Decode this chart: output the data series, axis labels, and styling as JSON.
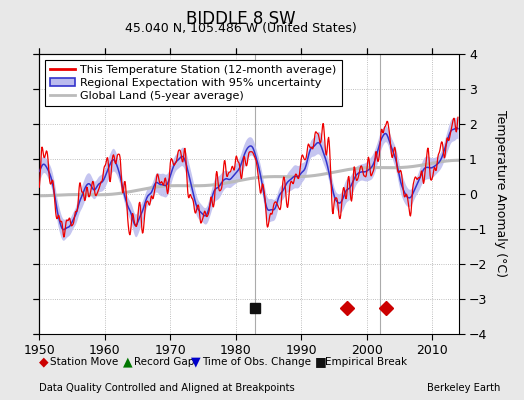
{
  "title": "BIDDLE 8 SW",
  "subtitle": "45.040 N, 105.486 W (United States)",
  "xlabel_bottom": "Data Quality Controlled and Aligned at Breakpoints",
  "xlabel_right": "Berkeley Earth",
  "ylabel": "Temperature Anomaly (°C)",
  "legend_entries": [
    "This Temperature Station (12-month average)",
    "Regional Expectation with 95% uncertainty",
    "Global Land (5-year average)"
  ],
  "ylim": [
    -4,
    4
  ],
  "xlim": [
    1950,
    2014
  ],
  "yticks": [
    -4,
    -3,
    -2,
    -1,
    0,
    1,
    2,
    3,
    4
  ],
  "xticks": [
    1950,
    1960,
    1970,
    1980,
    1990,
    2000,
    2010
  ],
  "station_color": "#EE0000",
  "regional_color": "#3333CC",
  "regional_fill_color": "#BBBBEE",
  "global_color": "#BBBBBB",
  "background_color": "#E8E8E8",
  "plot_bg_color": "#FFFFFF",
  "vline_years": [
    1983,
    2002
  ],
  "vline_color": "#888888",
  "markers": {
    "station_move": {
      "years": [
        1997,
        2003
      ],
      "color": "#CC0000",
      "marker": "D",
      "size": 7
    },
    "empirical_break": {
      "years": [
        1983
      ],
      "color": "#111111",
      "marker": "s",
      "size": 7
    },
    "record_gap": {
      "years": [],
      "color": "#007700",
      "marker": "^",
      "size": 7
    },
    "time_obs_change": {
      "years": [],
      "color": "#0000CC",
      "marker": "v",
      "size": 7
    }
  },
  "marker_y": -3.25,
  "title_fontsize": 12,
  "subtitle_fontsize": 9,
  "tick_fontsize": 9,
  "legend_fontsize": 8
}
